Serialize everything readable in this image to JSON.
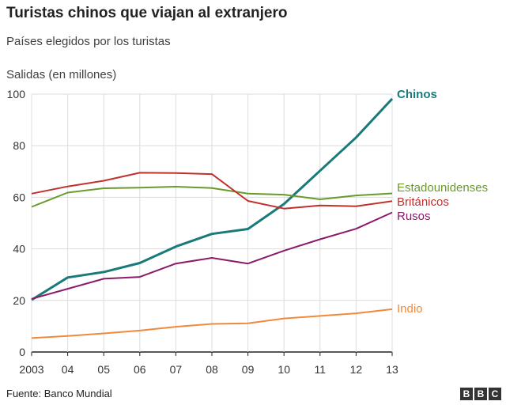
{
  "header": {
    "title": "Turistas chinos que viajan al extranjero",
    "subtitle": "Países elegidos por los turistas",
    "ylabel": "Salidas (en millones)"
  },
  "footer": {
    "source": "Fuente: Banco Mundial",
    "logo_letters": [
      "B",
      "B",
      "C"
    ]
  },
  "chart_data": {
    "type": "line",
    "title": "Turistas chinos que viajan al extranjero",
    "subtitle": "Países elegidos por los turistas",
    "ylabel": "Salidas (en millones)",
    "x": [
      "2003",
      "04",
      "05",
      "06",
      "07",
      "08",
      "09",
      "10",
      "11",
      "12",
      "13"
    ],
    "ylim": [
      0,
      100
    ],
    "yticks": [
      0,
      20,
      40,
      60,
      80,
      100
    ],
    "grid": true,
    "legend": "right-end-labels",
    "series": [
      {
        "name": "Chinos",
        "color": "#1a7a7a",
        "values": [
          20.2,
          28.9,
          31.0,
          34.5,
          40.9,
          45.8,
          47.7,
          57.4,
          70.3,
          83.2,
          98.2
        ]
      },
      {
        "name": "Estadounidenses",
        "color": "#6a9a2a",
        "values": [
          56.3,
          61.8,
          63.5,
          63.7,
          64.1,
          63.6,
          61.4,
          61.0,
          59.2,
          60.7,
          61.5
        ]
      },
      {
        "name": "Británicos",
        "color": "#c0302c",
        "values": [
          61.4,
          64.2,
          66.4,
          69.5,
          69.4,
          69.0,
          58.6,
          55.6,
          56.8,
          56.5,
          58.5
        ]
      },
      {
        "name": "Rusos",
        "color": "#8a1a6a",
        "values": [
          20.6,
          24.5,
          28.4,
          29.1,
          34.3,
          36.5,
          34.3,
          39.3,
          43.7,
          47.8,
          54.1
        ]
      },
      {
        "name": "Indio",
        "color": "#f08a3a",
        "values": [
          5.4,
          6.2,
          7.2,
          8.3,
          9.8,
          10.9,
          11.1,
          13.0,
          14.0,
          15.0,
          16.6
        ]
      }
    ]
  }
}
